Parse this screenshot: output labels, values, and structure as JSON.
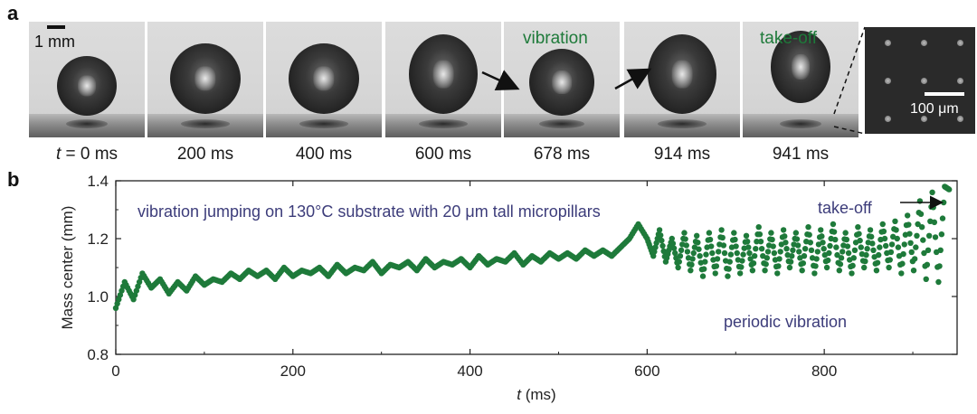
{
  "panel_a": {
    "letter": "a",
    "scale_label": "1 mm",
    "frames": [
      {
        "time_prefix": "t",
        "time_value": " = 0 ms",
        "shape": "sessile"
      },
      {
        "time_value": "200 ms",
        "shape": "lobe"
      },
      {
        "time_value": "400 ms",
        "shape": "lobe"
      },
      {
        "time_value": "600 ms",
        "shape": "tall"
      },
      {
        "time_value": "678 ms",
        "shape": "squat"
      },
      {
        "time_value": "914 ms",
        "shape": "tall"
      },
      {
        "time_value": "941 ms",
        "shape": "airborne"
      }
    ],
    "vibration_label": "vibration",
    "takeoff_label": "take-off",
    "sem_scale_label": "100 μm"
  },
  "panel_b": {
    "letter": "b",
    "annotation_main": "vibration jumping on 130°C substrate with 20 μm tall micropillars",
    "annotation_takeoff": "take-off",
    "annotation_periodic": "periodic vibration"
  },
  "chart_data": {
    "type": "scatter",
    "title": "",
    "xlabel_var": "t",
    "xlabel_unit": " (ms)",
    "ylabel": "Mass center (mm)",
    "xlim": [
      0,
      950
    ],
    "ylim": [
      0.8,
      1.4
    ],
    "xticks": [
      0,
      200,
      400,
      600,
      800
    ],
    "yticks": [
      0.8,
      1.0,
      1.2,
      1.4
    ],
    "ytick_labels": [
      "0.8",
      "1.0",
      "1.2",
      "1.4"
    ],
    "series": [
      {
        "name": "mass center",
        "color": "#1e7a3a",
        "x": [
          0,
          10,
          20,
          30,
          40,
          50,
          60,
          70,
          80,
          90,
          100,
          110,
          120,
          130,
          140,
          150,
          160,
          170,
          180,
          190,
          200,
          210,
          220,
          230,
          240,
          250,
          260,
          270,
          280,
          290,
          300,
          310,
          320,
          330,
          340,
          350,
          360,
          370,
          380,
          390,
          400,
          410,
          420,
          430,
          440,
          450,
          460,
          470,
          480,
          490,
          500,
          510,
          520,
          530,
          540,
          550,
          560,
          570,
          580,
          590,
          600,
          607,
          614,
          621,
          628,
          635,
          642,
          649,
          656,
          663,
          670,
          677,
          684,
          691,
          698,
          705,
          712,
          719,
          726,
          733,
          740,
          747,
          754,
          761,
          768,
          775,
          782,
          789,
          796,
          803,
          810,
          817,
          824,
          831,
          838,
          845,
          852,
          859,
          866,
          873,
          880,
          887,
          894,
          901,
          908,
          915,
          922,
          929,
          936,
          941
        ],
        "y": [
          0.96,
          1.05,
          0.99,
          1.08,
          1.03,
          1.06,
          1.01,
          1.05,
          1.02,
          1.07,
          1.04,
          1.06,
          1.05,
          1.08,
          1.06,
          1.09,
          1.07,
          1.09,
          1.06,
          1.1,
          1.07,
          1.09,
          1.08,
          1.1,
          1.07,
          1.11,
          1.08,
          1.1,
          1.09,
          1.12,
          1.08,
          1.11,
          1.1,
          1.12,
          1.09,
          1.13,
          1.1,
          1.12,
          1.11,
          1.13,
          1.1,
          1.14,
          1.11,
          1.13,
          1.12,
          1.15,
          1.11,
          1.14,
          1.12,
          1.15,
          1.13,
          1.15,
          1.13,
          1.16,
          1.14,
          1.16,
          1.14,
          1.17,
          1.2,
          1.25,
          1.2,
          1.14,
          1.23,
          1.12,
          1.2,
          1.1,
          1.22,
          1.09,
          1.21,
          1.07,
          1.22,
          1.08,
          1.23,
          1.07,
          1.22,
          1.08,
          1.21,
          1.09,
          1.24,
          1.09,
          1.22,
          1.08,
          1.23,
          1.1,
          1.22,
          1.09,
          1.24,
          1.08,
          1.23,
          1.1,
          1.25,
          1.09,
          1.22,
          1.08,
          1.24,
          1.1,
          1.23,
          1.09,
          1.25,
          1.1,
          1.26,
          1.08,
          1.28,
          1.09,
          1.33,
          1.06,
          1.36,
          1.05,
          1.38,
          1.37
        ]
      }
    ],
    "annotations": [
      "vibration jumping on 130°C substrate with 20 μm tall micropillars",
      "take-off",
      "periodic vibration"
    ]
  }
}
